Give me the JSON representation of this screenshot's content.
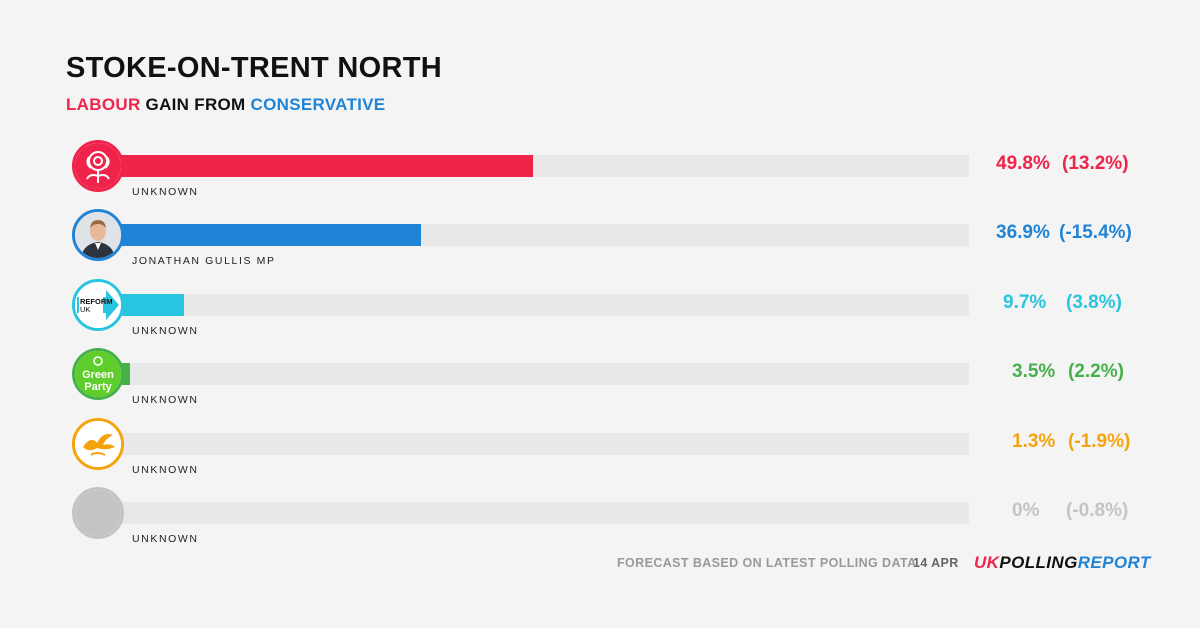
{
  "header": {
    "title": "STOKE-ON-TRENT NORTH",
    "subtitle_gain": "LABOUR",
    "subtitle_middle": "GAIN FROM",
    "subtitle_from": "CONSERVATIVE"
  },
  "chart_data": {
    "type": "bar",
    "orientation": "horizontal",
    "xlim": [
      0,
      100
    ],
    "categories": [
      "Labour",
      "Conservative",
      "Reform UK",
      "Green Party",
      "Liberal Democrats",
      "Other"
    ],
    "candidates": [
      "UNKNOWN",
      "JONATHAN GULLIS MP",
      "UNKNOWN",
      "UNKNOWN",
      "UNKNOWN",
      "UNKNOWN"
    ],
    "values": [
      49.8,
      36.9,
      9.7,
      3.5,
      1.3,
      0
    ],
    "value_labels": [
      "49.8%",
      "36.9%",
      "9.7%",
      "3.5%",
      "1.3%",
      "0%"
    ],
    "change_labels": [
      "(13.2%)",
      "(-15.4%)",
      "(3.8%)",
      "(2.2%)",
      "(-1.9%)",
      "(-0.8%)"
    ],
    "colors": [
      "#f0234a",
      "#1f84d6",
      "#29c4df",
      "#46b04a",
      "#f5a30d",
      "#c4c4c4"
    ],
    "icons": [
      "labour-rose-icon",
      "candidate-photo-icon",
      "reform-uk-icon",
      "green-party-icon",
      "libdem-bird-icon",
      "blank-circle-icon"
    ],
    "logo_text": {
      "reform_line1": "REFORM",
      "reform_line2": "UK",
      "green_line1": "Green",
      "green_line2": "Party"
    }
  },
  "footer": {
    "note": "FORECAST BASED ON LATEST POLLING DATA",
    "date": "14 APR",
    "brand_a": "UK",
    "brand_b": "POLLING",
    "brand_c": "REPORT"
  }
}
